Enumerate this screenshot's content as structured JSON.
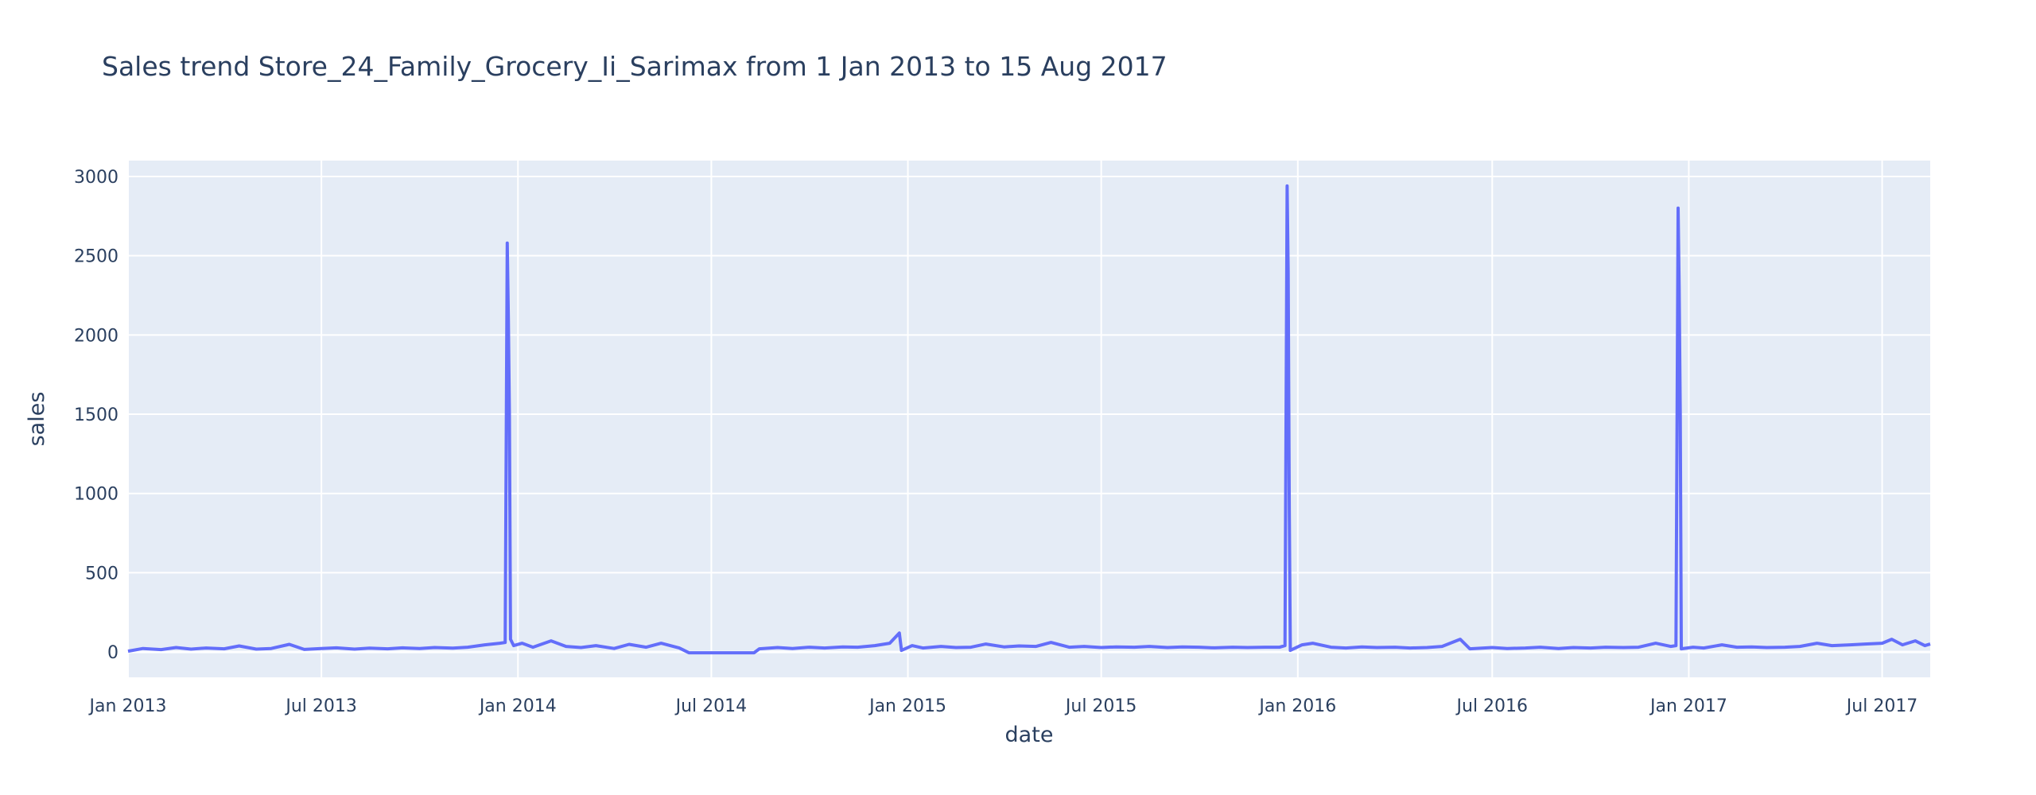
{
  "chart_data": {
    "type": "line",
    "title": "Sales trend Store_24_Family_Grocery_Ii_Sarimax from  1 Jan 2013 to 15 Aug 2017",
    "xlabel": "date",
    "ylabel": "sales",
    "xlim": [
      "2013-01-01",
      "2017-08-15"
    ],
    "ylim": [
      -160,
      3100
    ],
    "grid": true,
    "legend": "none",
    "x_ticks": [
      {
        "date": "2013-01-01",
        "label": "Jan 2013"
      },
      {
        "date": "2013-07-01",
        "label": "Jul 2013"
      },
      {
        "date": "2014-01-01",
        "label": "Jan 2014"
      },
      {
        "date": "2014-07-01",
        "label": "Jul 2014"
      },
      {
        "date": "2015-01-01",
        "label": "Jan 2015"
      },
      {
        "date": "2015-07-01",
        "label": "Jul 2015"
      },
      {
        "date": "2016-01-01",
        "label": "Jan 2016"
      },
      {
        "date": "2016-07-01",
        "label": "Jul 2016"
      },
      {
        "date": "2017-01-01",
        "label": "Jan 2017"
      },
      {
        "date": "2017-07-01",
        "label": "Jul 2017"
      }
    ],
    "y_ticks": [
      0,
      500,
      1000,
      1500,
      2000,
      2500,
      3000
    ],
    "series": [
      {
        "color": "#636efa",
        "points": [
          [
            "2013-01-01",
            5
          ],
          [
            "2013-01-15",
            22
          ],
          [
            "2013-02-01",
            15
          ],
          [
            "2013-02-15",
            28
          ],
          [
            "2013-03-01",
            18
          ],
          [
            "2013-03-15",
            25
          ],
          [
            "2013-04-01",
            20
          ],
          [
            "2013-04-15",
            38
          ],
          [
            "2013-05-01",
            18
          ],
          [
            "2013-05-15",
            22
          ],
          [
            "2013-06-01",
            48
          ],
          [
            "2013-06-15",
            16
          ],
          [
            "2013-07-01",
            22
          ],
          [
            "2013-07-15",
            26
          ],
          [
            "2013-08-01",
            18
          ],
          [
            "2013-08-15",
            24
          ],
          [
            "2013-09-01",
            20
          ],
          [
            "2013-09-15",
            26
          ],
          [
            "2013-10-01",
            22
          ],
          [
            "2013-10-15",
            28
          ],
          [
            "2013-11-01",
            24
          ],
          [
            "2013-11-15",
            30
          ],
          [
            "2013-12-01",
            45
          ],
          [
            "2013-12-15",
            55
          ],
          [
            "2013-12-20",
            60
          ],
          [
            "2013-12-22",
            2580
          ],
          [
            "2013-12-23",
            2100
          ],
          [
            "2013-12-24",
            1500
          ],
          [
            "2013-12-25",
            80
          ],
          [
            "2013-12-28",
            40
          ],
          [
            "2014-01-05",
            55
          ],
          [
            "2014-01-15",
            30
          ],
          [
            "2014-02-01",
            70
          ],
          [
            "2014-02-15",
            35
          ],
          [
            "2014-03-01",
            28
          ],
          [
            "2014-03-15",
            40
          ],
          [
            "2014-04-01",
            22
          ],
          [
            "2014-04-15",
            48
          ],
          [
            "2014-05-01",
            30
          ],
          [
            "2014-05-15",
            55
          ],
          [
            "2014-06-01",
            25
          ],
          [
            "2014-06-10",
            -5
          ],
          [
            "2014-07-01",
            -5
          ],
          [
            "2014-08-01",
            -5
          ],
          [
            "2014-08-10",
            -5
          ],
          [
            "2014-08-15",
            20
          ],
          [
            "2014-09-01",
            28
          ],
          [
            "2014-09-15",
            22
          ],
          [
            "2014-10-01",
            30
          ],
          [
            "2014-10-15",
            25
          ],
          [
            "2014-11-01",
            32
          ],
          [
            "2014-11-15",
            30
          ],
          [
            "2014-12-01",
            40
          ],
          [
            "2014-12-15",
            55
          ],
          [
            "2014-12-24",
            120
          ],
          [
            "2014-12-26",
            10
          ],
          [
            "2015-01-05",
            40
          ],
          [
            "2015-01-15",
            25
          ],
          [
            "2015-02-01",
            35
          ],
          [
            "2015-02-15",
            28
          ],
          [
            "2015-03-01",
            30
          ],
          [
            "2015-03-15",
            50
          ],
          [
            "2015-04-01",
            32
          ],
          [
            "2015-04-15",
            38
          ],
          [
            "2015-05-01",
            35
          ],
          [
            "2015-05-15",
            60
          ],
          [
            "2015-06-01",
            30
          ],
          [
            "2015-06-15",
            35
          ],
          [
            "2015-07-01",
            28
          ],
          [
            "2015-07-15",
            32
          ],
          [
            "2015-08-01",
            30
          ],
          [
            "2015-08-15",
            35
          ],
          [
            "2015-09-01",
            28
          ],
          [
            "2015-09-15",
            32
          ],
          [
            "2015-10-01",
            30
          ],
          [
            "2015-10-15",
            26
          ],
          [
            "2015-11-01",
            30
          ],
          [
            "2015-11-15",
            28
          ],
          [
            "2015-12-01",
            30
          ],
          [
            "2015-12-15",
            30
          ],
          [
            "2015-12-20",
            40
          ],
          [
            "2015-12-22",
            2940
          ],
          [
            "2015-12-23",
            2400
          ],
          [
            "2015-12-24",
            900
          ],
          [
            "2015-12-25",
            10
          ],
          [
            "2016-01-05",
            45
          ],
          [
            "2016-01-15",
            55
          ],
          [
            "2016-02-01",
            30
          ],
          [
            "2016-02-15",
            25
          ],
          [
            "2016-03-01",
            32
          ],
          [
            "2016-03-15",
            28
          ],
          [
            "2016-04-01",
            30
          ],
          [
            "2016-04-15",
            25
          ],
          [
            "2016-05-01",
            28
          ],
          [
            "2016-05-15",
            35
          ],
          [
            "2016-06-01",
            80
          ],
          [
            "2016-06-10",
            20
          ],
          [
            "2016-07-01",
            28
          ],
          [
            "2016-07-15",
            22
          ],
          [
            "2016-08-01",
            25
          ],
          [
            "2016-08-15",
            30
          ],
          [
            "2016-09-01",
            22
          ],
          [
            "2016-09-15",
            28
          ],
          [
            "2016-10-01",
            25
          ],
          [
            "2016-10-15",
            30
          ],
          [
            "2016-11-01",
            28
          ],
          [
            "2016-11-15",
            30
          ],
          [
            "2016-12-01",
            55
          ],
          [
            "2016-12-15",
            35
          ],
          [
            "2016-12-20",
            40
          ],
          [
            "2016-12-22",
            2800
          ],
          [
            "2016-12-23",
            2300
          ],
          [
            "2016-12-24",
            1500
          ],
          [
            "2016-12-25",
            20
          ],
          [
            "2017-01-05",
            30
          ],
          [
            "2017-01-15",
            25
          ],
          [
            "2017-02-01",
            45
          ],
          [
            "2017-02-15",
            30
          ],
          [
            "2017-03-01",
            32
          ],
          [
            "2017-03-15",
            28
          ],
          [
            "2017-04-01",
            30
          ],
          [
            "2017-04-15",
            35
          ],
          [
            "2017-05-01",
            55
          ],
          [
            "2017-05-15",
            40
          ],
          [
            "2017-06-01",
            45
          ],
          [
            "2017-06-15",
            50
          ],
          [
            "2017-07-01",
            55
          ],
          [
            "2017-07-10",
            80
          ],
          [
            "2017-07-20",
            45
          ],
          [
            "2017-08-01",
            70
          ],
          [
            "2017-08-10",
            40
          ],
          [
            "2017-08-15",
            50
          ]
        ]
      }
    ]
  }
}
